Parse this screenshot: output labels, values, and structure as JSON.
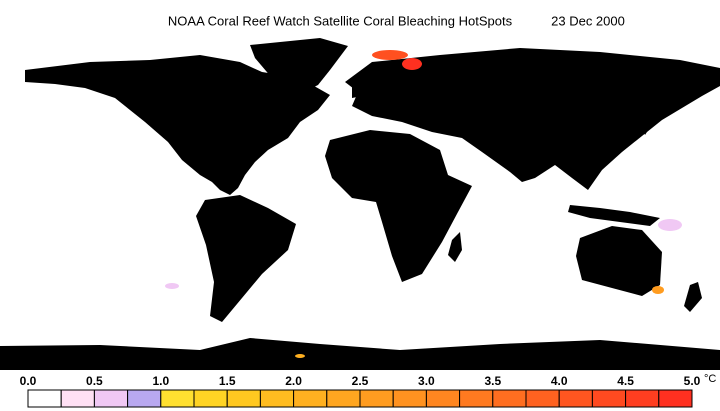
{
  "title": "NOAA Coral Reef Watch Satellite Coral Bleaching HotSpots",
  "date": "23 Dec 2000",
  "colorbar": {
    "bins": [
      0,
      0.25,
      0.5,
      0.75,
      1,
      1.25,
      1.5,
      1.75,
      2,
      2.25,
      2.5,
      2.75,
      3,
      3.25,
      3.5,
      3.75,
      4,
      4.25,
      4.5,
      4.75,
      5
    ],
    "colors": [
      "#ffffff",
      "#ffe0f4",
      "#f0c8f4",
      "#b8a8f0",
      "#ffe030",
      "#ffd424",
      "#ffc820",
      "#ffbc20",
      "#ffb020",
      "#ffa620",
      "#ff9c20",
      "#ff9220",
      "#ff8620",
      "#ff7a20",
      "#ff6e20",
      "#ff6220",
      "#ff5620",
      "#ff4a20",
      "#ff3e20",
      "#ff3020"
    ],
    "ticks": [
      {
        "value": 0,
        "label": "0.0"
      },
      {
        "value": 0.5,
        "label": "0.5"
      },
      {
        "value": 1,
        "label": "1.0"
      },
      {
        "value": 1.5,
        "label": "1.5"
      },
      {
        "value": 2,
        "label": "2.0"
      },
      {
        "value": 2.5,
        "label": "2.5"
      },
      {
        "value": 3,
        "label": "3.0"
      },
      {
        "value": 3.5,
        "label": "3.5"
      },
      {
        "value": 4,
        "label": "4.0"
      },
      {
        "value": 4.5,
        "label": "4.5"
      },
      {
        "value": 5,
        "label": "5.0"
      }
    ],
    "unit": "°C"
  }
}
